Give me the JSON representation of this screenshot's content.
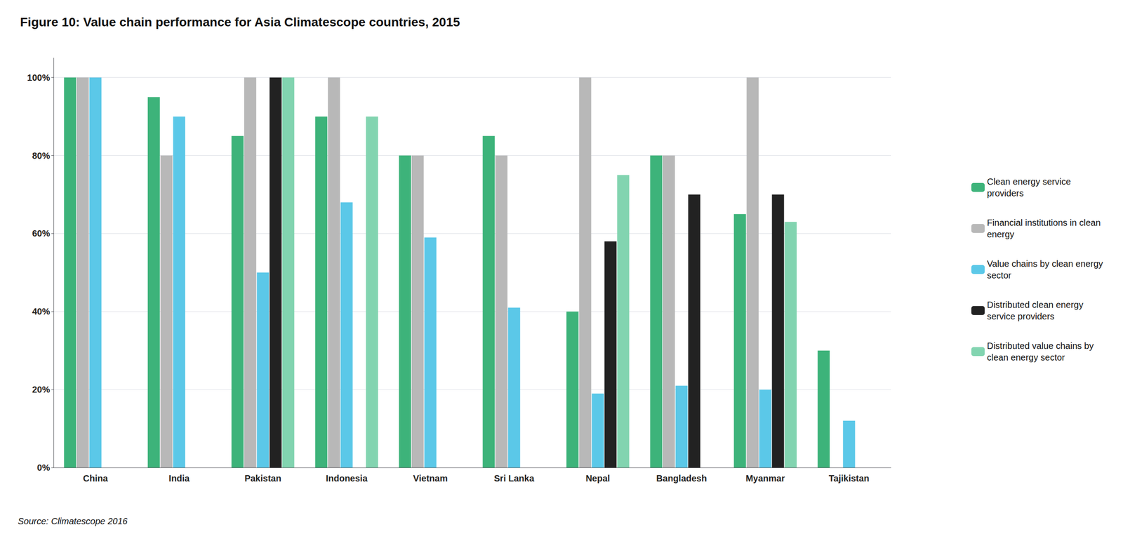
{
  "chart_data": {
    "type": "bar",
    "title": "Figure 10: Value chain performance for Asia Climatescope countries, 2015",
    "annotations": [
      "Source: Climatescope 2016"
    ],
    "categories": [
      "China",
      "India",
      "Pakistan",
      "Indonesia",
      "Vietnam",
      "Sri Lanka",
      "Nepal",
      "Bangladesh",
      "Myanmar",
      "Tajikistan"
    ],
    "series": [
      {
        "name": "Clean energy service\nproviders",
        "color": "#3db37a",
        "values": [
          1.0,
          0.95,
          0.85,
          0.9,
          0.8,
          0.85,
          0.4,
          0.8,
          0.65,
          0.3
        ]
      },
      {
        "name": "Financial institutions in clean\nenergy",
        "color": "#b8b8b8",
        "values": [
          1.0,
          0.8,
          1.0,
          1.0,
          0.8,
          0.8,
          1.0,
          0.8,
          1.0,
          0.0
        ]
      },
      {
        "name": "Value chains by clean energy\nsector",
        "color": "#5bc8e8",
        "values": [
          1.0,
          0.9,
          0.5,
          0.68,
          0.59,
          0.41,
          0.19,
          0.21,
          0.2,
          0.12
        ]
      },
      {
        "name": "Distributed clean energy\nservice providers",
        "color": "#222222",
        "values": [
          0.0,
          0.0,
          1.0,
          0.0,
          0.0,
          0.0,
          0.58,
          0.7,
          0.7,
          0.0
        ]
      },
      {
        "name": "Distributed value chains by\nclean energy sector",
        "color": "#82d4b0",
        "values": [
          0.0,
          0.0,
          1.0,
          0.9,
          0.0,
          0.0,
          0.75,
          0.0,
          0.63,
          0.0
        ]
      }
    ],
    "ylim": [
      0,
      1.05
    ],
    "yticks": [
      {
        "value": 0.0,
        "label": "0%"
      },
      {
        "value": 0.2,
        "label": "20%"
      },
      {
        "value": 0.4,
        "label": "40%"
      },
      {
        "value": 0.6,
        "label": "60%"
      },
      {
        "value": 0.8,
        "label": "80%"
      },
      {
        "value": 1.0,
        "label": "100%"
      }
    ],
    "grid": true,
    "legend": "right"
  }
}
